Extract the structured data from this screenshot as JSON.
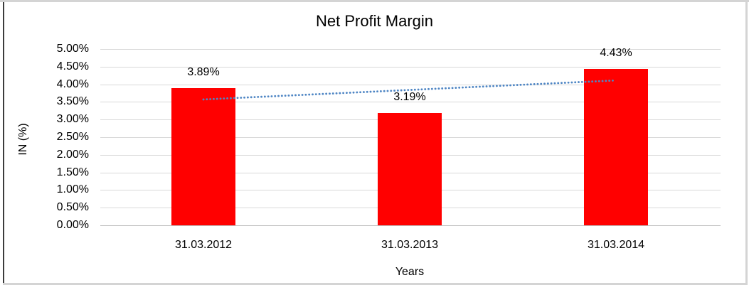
{
  "chart_data": {
    "type": "bar",
    "title": "Net Profit Margin",
    "xlabel": "Years",
    "ylabel": "IN (%)",
    "categories": [
      "31.03.2012",
      "31.03.2013",
      "31.03.2014"
    ],
    "values": [
      3.89,
      3.19,
      4.43
    ],
    "data_labels": [
      "3.89%",
      "3.19%",
      "4.43%"
    ],
    "ylim": [
      0,
      5
    ],
    "ytick_step": 0.5,
    "ytick_labels": [
      "0.00%",
      "0.50%",
      "1.00%",
      "1.50%",
      "2.00%",
      "2.50%",
      "3.00%",
      "3.50%",
      "4.00%",
      "4.50%",
      "5.00%"
    ],
    "grid": true,
    "legend": false,
    "colors": {
      "bar": "#ff0000",
      "trendline": "#4f86c4",
      "gridline": "#d9d9d9",
      "axis_line": "#bfbfbf",
      "text": "#000000",
      "frame_light": "#d4d4d4",
      "frame_dark": "#3c3c3c"
    },
    "trendline": {
      "type": "linear",
      "style": "dotted",
      "start_value": 3.57,
      "end_value": 4.11
    }
  }
}
